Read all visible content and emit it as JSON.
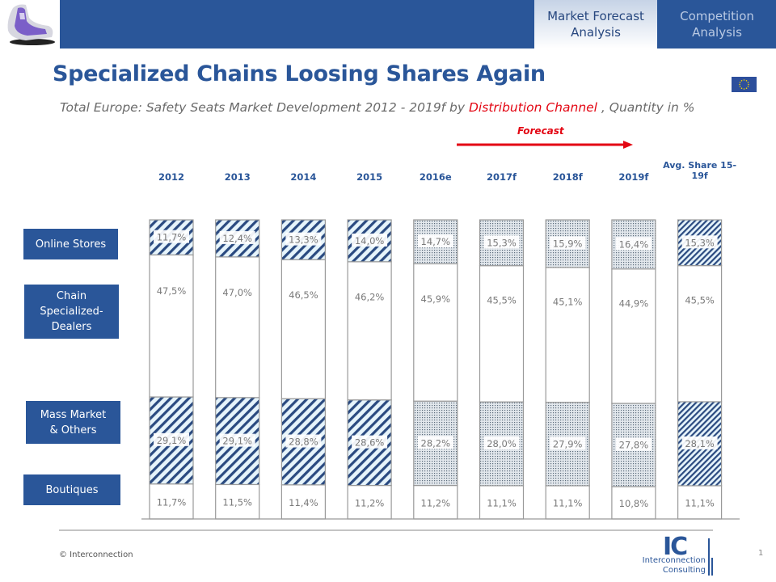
{
  "header": {
    "tabs": [
      {
        "label_line1": "Market Forecast",
        "label_line2": "Analysis",
        "active": true
      },
      {
        "label_line1": "Competition",
        "label_line2": "Analysis",
        "active": false
      }
    ],
    "logo_icon": "car-seat-image",
    "region_icon": "eu-flag-icon"
  },
  "title": "Specialized Chains Loosing Shares Again",
  "subtitle": {
    "part1": "Total Europe: Safety Seats Market Development 2012 - 2019f by ",
    "highlight": "Distribution Channel",
    "part2": " , Quantity in %"
  },
  "forecast": {
    "label": "Forecast",
    "color": "#e30613"
  },
  "categories_legend": [
    {
      "line1": "Online Stores",
      "line2": "",
      "line3": ""
    },
    {
      "line1": "Chain",
      "line2": "Specialized-",
      "line3": "Dealers"
    },
    {
      "line1": "Mass Market",
      "line2": "& Others",
      "line3": ""
    },
    {
      "line1": "Boutiques",
      "line2": "",
      "line3": ""
    }
  ],
  "chart_data": {
    "type": "bar",
    "stacked": true,
    "title": "Total Europe: Safety Seats Market Development 2012 - 2019f by Distribution Channel , Quantity in %",
    "categories": [
      "2012",
      "2013",
      "2014",
      "2015",
      "2016e",
      "2017f",
      "2018f",
      "2019f",
      "Avg. Share 15-19f"
    ],
    "category_label_lines": [
      [
        "2012"
      ],
      [
        "2013"
      ],
      [
        "2014"
      ],
      [
        "2015"
      ],
      [
        "2016e"
      ],
      [
        "2017f"
      ],
      [
        "2018f"
      ],
      [
        "2019f"
      ],
      [
        "Avg. Share 15-",
        "19f"
      ]
    ],
    "bar_kind": [
      "actual",
      "actual",
      "actual",
      "actual",
      "forecast",
      "forecast",
      "forecast",
      "forecast",
      "average"
    ],
    "series": [
      {
        "name": "Boutiques",
        "values": [
          11.7,
          11.5,
          11.4,
          11.2,
          11.2,
          11.1,
          11.1,
          10.8,
          11.1
        ],
        "labels": [
          "11,7%",
          "11,5%",
          "11,4%",
          "11,2%",
          "11,2%",
          "11,1%",
          "11,1%",
          "10,8%",
          "11,1%"
        ]
      },
      {
        "name": "Mass Market & Others",
        "values": [
          29.1,
          29.1,
          28.8,
          28.6,
          28.2,
          28.0,
          27.9,
          27.8,
          28.1
        ],
        "labels": [
          "29,1%",
          "29,1%",
          "28,8%",
          "28,6%",
          "28,2%",
          "28,0%",
          "27,9%",
          "27,8%",
          "28,1%"
        ]
      },
      {
        "name": "Chain Specialized-Dealers",
        "values": [
          47.5,
          47.0,
          46.5,
          46.2,
          45.9,
          45.5,
          45.1,
          44.9,
          45.5
        ],
        "labels": [
          "47,5%",
          "47,0%",
          "46,5%",
          "46,2%",
          "45,9%",
          "45,5%",
          "45,1%",
          "44,9%",
          "45,5%"
        ]
      },
      {
        "name": "Online Stores",
        "values": [
          11.7,
          12.4,
          13.3,
          14.0,
          14.7,
          15.3,
          15.9,
          16.4,
          15.3
        ],
        "labels": [
          "11,7%",
          "12,4%",
          "13,3%",
          "14,0%",
          "14,7%",
          "15,3%",
          "15,9%",
          "16,4%",
          "15,3%"
        ]
      }
    ],
    "ylim": [
      0,
      100
    ],
    "xlabel": "",
    "ylabel": "",
    "grid": false,
    "legend": "left",
    "colors": {
      "accent": "#2a5699",
      "hatch_bg": "#e6f4fb",
      "dot": "#5a6a7a",
      "border": "#9a9a9a",
      "label": "#7a7a7a"
    }
  },
  "footer": {
    "copyright": "© Interconnection",
    "page_number": "1",
    "company_logo_big": "IC",
    "company_line1": "Interconnection",
    "company_line2": "Consulting"
  }
}
